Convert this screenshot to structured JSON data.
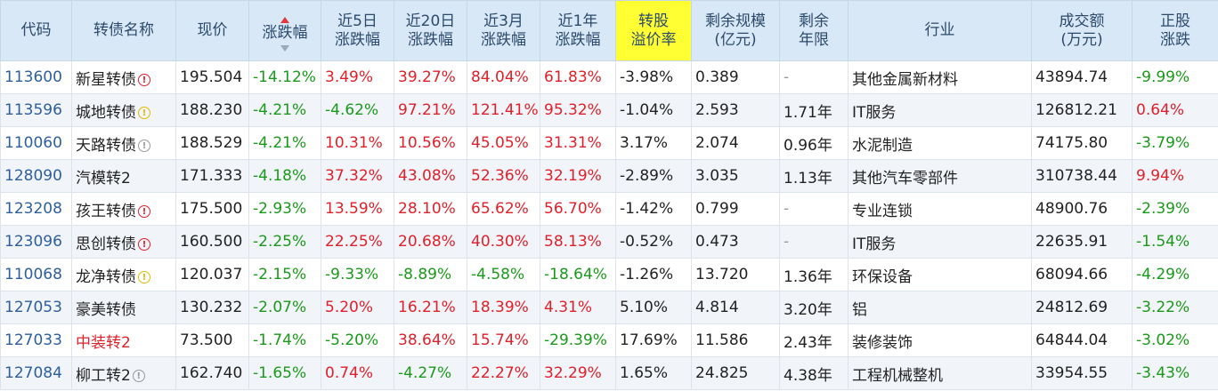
{
  "headers": [
    {
      "key": "code",
      "label": "代码"
    },
    {
      "key": "name",
      "label": "转债名称"
    },
    {
      "key": "price",
      "label": "现价"
    },
    {
      "key": "chg",
      "label": "涨跌幅"
    },
    {
      "key": "chg5",
      "label": "近5日\n涨跌幅"
    },
    {
      "key": "chg20",
      "label": "近20日\n涨跌幅"
    },
    {
      "key": "chg3m",
      "label": "近3月\n涨跌幅"
    },
    {
      "key": "chg1y",
      "label": "近1年\n涨跌幅"
    },
    {
      "key": "premium",
      "label": "转股\n溢价率"
    },
    {
      "key": "scale",
      "label": "剩余规模\n(亿元)"
    },
    {
      "key": "years",
      "label": "剩余\n年限"
    },
    {
      "key": "industry",
      "label": "行业"
    },
    {
      "key": "volume",
      "label": "成交额\n(万元)"
    },
    {
      "key": "stock_chg",
      "label": "正股\n涨跌"
    }
  ],
  "sorted_column": "chg",
  "highlight_column": "premium",
  "colors": {
    "up": "#e0202a",
    "down": "#1a9a1a",
    "header_bg": "#d9e8f7",
    "highlight": "#ffff33"
  },
  "rows": [
    {
      "code": "113600",
      "name": "新星转债",
      "flag": "red",
      "name_red": false,
      "price": "195.504",
      "chg": "-14.12%",
      "chg5": "3.49%",
      "chg20": "39.27%",
      "chg3m": "84.04%",
      "chg1y": "61.83%",
      "premium": "-3.98%",
      "scale": "0.389",
      "years": "-",
      "industry": "其他金属新材料",
      "volume": "43894.74",
      "stock_chg": "-9.99%"
    },
    {
      "code": "113596",
      "name": "城地转债",
      "flag": "yellow",
      "name_red": false,
      "price": "188.230",
      "chg": "-4.21%",
      "chg5": "-4.62%",
      "chg20": "97.21%",
      "chg3m": "121.41%",
      "chg1y": "95.32%",
      "premium": "-1.04%",
      "scale": "2.593",
      "years": "1.71年",
      "industry": "IT服务",
      "volume": "126812.21",
      "stock_chg": "0.64%"
    },
    {
      "code": "110060",
      "name": "天路转债",
      "flag": "gray",
      "name_red": false,
      "price": "188.529",
      "chg": "-4.21%",
      "chg5": "10.31%",
      "chg20": "10.56%",
      "chg3m": "45.05%",
      "chg1y": "31.31%",
      "premium": "3.17%",
      "scale": "2.074",
      "years": "0.96年",
      "industry": "水泥制造",
      "volume": "74175.80",
      "stock_chg": "-3.79%"
    },
    {
      "code": "128090",
      "name": "汽模转2",
      "flag": "",
      "name_red": false,
      "price": "171.333",
      "chg": "-4.18%",
      "chg5": "37.32%",
      "chg20": "43.08%",
      "chg3m": "52.36%",
      "chg1y": "32.19%",
      "premium": "-2.89%",
      "scale": "3.035",
      "years": "1.13年",
      "industry": "其他汽车零部件",
      "volume": "310738.44",
      "stock_chg": "9.94%"
    },
    {
      "code": "123208",
      "name": "孩王转债",
      "flag": "red",
      "name_red": false,
      "price": "175.500",
      "chg": "-2.93%",
      "chg5": "13.59%",
      "chg20": "28.10%",
      "chg3m": "65.62%",
      "chg1y": "56.70%",
      "premium": "-1.42%",
      "scale": "0.799",
      "years": "-",
      "industry": "专业连锁",
      "volume": "48900.76",
      "stock_chg": "-2.39%"
    },
    {
      "code": "123096",
      "name": "思创转债",
      "flag": "red",
      "name_red": false,
      "price": "160.500",
      "chg": "-2.25%",
      "chg5": "22.25%",
      "chg20": "20.68%",
      "chg3m": "40.30%",
      "chg1y": "58.13%",
      "premium": "-0.52%",
      "scale": "0.473",
      "years": "-",
      "industry": "IT服务",
      "volume": "22635.91",
      "stock_chg": "-1.54%"
    },
    {
      "code": "110068",
      "name": "龙净转债",
      "flag": "yellow",
      "name_red": false,
      "price": "120.037",
      "chg": "-2.15%",
      "chg5": "-9.33%",
      "chg20": "-8.89%",
      "chg3m": "-4.58%",
      "chg1y": "-18.64%",
      "premium": "-1.26%",
      "scale": "13.720",
      "years": "1.36年",
      "industry": "环保设备",
      "volume": "68094.66",
      "stock_chg": "-4.29%"
    },
    {
      "code": "127053",
      "name": "豪美转债",
      "flag": "",
      "name_red": false,
      "price": "130.232",
      "chg": "-2.07%",
      "chg5": "5.20%",
      "chg20": "16.21%",
      "chg3m": "18.39%",
      "chg1y": "4.31%",
      "premium": "5.10%",
      "scale": "4.814",
      "years": "3.20年",
      "industry": "铝",
      "volume": "24812.69",
      "stock_chg": "-3.22%"
    },
    {
      "code": "127033",
      "name": "中装转2",
      "flag": "",
      "name_red": true,
      "price": "73.500",
      "chg": "-1.74%",
      "chg5": "-5.20%",
      "chg20": "38.64%",
      "chg3m": "15.74%",
      "chg1y": "-29.39%",
      "premium": "17.69%",
      "scale": "11.586",
      "years": "2.43年",
      "industry": "装修装饰",
      "volume": "64844.04",
      "stock_chg": "-3.02%"
    },
    {
      "code": "127084",
      "name": "柳工转2",
      "flag": "gray",
      "name_red": false,
      "price": "162.740",
      "chg": "-1.65%",
      "chg5": "0.74%",
      "chg20": "-4.27%",
      "chg3m": "22.27%",
      "chg1y": "32.29%",
      "premium": "1.65%",
      "scale": "24.825",
      "years": "4.38年",
      "industry": "工程机械整机",
      "volume": "33954.55",
      "stock_chg": "-3.43%"
    }
  ]
}
